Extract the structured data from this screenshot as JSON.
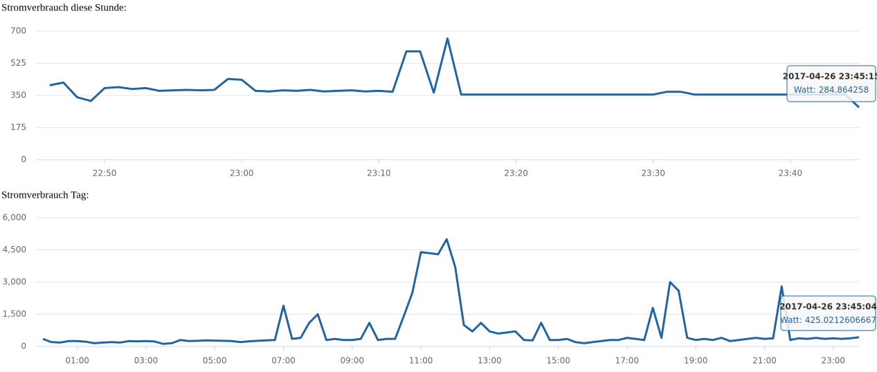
{
  "chart_data": [
    {
      "type": "line",
      "title": "Stromverbrauch diese Stunde:",
      "color": "#1f64a3",
      "grid": true,
      "x": [
        "22:46",
        "22:47",
        "22:48",
        "22:49",
        "22:50",
        "22:51",
        "22:52",
        "22:53",
        "22:54",
        "22:55",
        "22:56",
        "22:57",
        "22:58",
        "22:59",
        "23:00",
        "23:01",
        "23:02",
        "23:03",
        "23:04",
        "23:05",
        "23:06",
        "23:07",
        "23:08",
        "23:09",
        "23:10",
        "23:11",
        "23:12",
        "23:13",
        "23:14",
        "23:15",
        "23:16",
        "23:17",
        "23:18",
        "23:19",
        "23:20",
        "23:21",
        "23:22",
        "23:23",
        "23:24",
        "23:25",
        "23:26",
        "23:27",
        "23:28",
        "23:29",
        "23:30",
        "23:31",
        "23:32",
        "23:33",
        "23:34",
        "23:35",
        "23:36",
        "23:37",
        "23:38",
        "23:39",
        "23:40",
        "23:41",
        "23:42",
        "23:43",
        "23:44",
        "23:45"
      ],
      "values": [
        405,
        420,
        340,
        320,
        390,
        395,
        385,
        390,
        375,
        378,
        380,
        378,
        380,
        440,
        435,
        375,
        372,
        378,
        375,
        380,
        372,
        375,
        378,
        372,
        375,
        370,
        590,
        590,
        365,
        660,
        355,
        355,
        355,
        355,
        355,
        355,
        355,
        355,
        355,
        355,
        355,
        355,
        355,
        355,
        355,
        370,
        370,
        355,
        355,
        355,
        355,
        355,
        355,
        355,
        355,
        355,
        355,
        355,
        355,
        285
      ],
      "xlim": [
        "22:45",
        "23:45"
      ],
      "xticks": [
        "22:50",
        "23:00",
        "23:10",
        "23:20",
        "23:30",
        "23:40"
      ],
      "ylim": [
        0,
        700
      ],
      "yticks": [
        0,
        175,
        350,
        525,
        700
      ],
      "tooltip": {
        "time": "2017-04-26 23:45:15",
        "label": "Watt:",
        "value": 284.864258
      }
    },
    {
      "type": "line",
      "title": "Stromverbrauch Tag:",
      "color": "#1f64a3",
      "grid": true,
      "x": [
        "00:00",
        "00:15",
        "00:30",
        "00:45",
        "01:00",
        "01:15",
        "01:30",
        "01:45",
        "02:00",
        "02:15",
        "02:30",
        "02:45",
        "03:00",
        "03:15",
        "03:30",
        "03:45",
        "04:00",
        "04:15",
        "04:30",
        "04:45",
        "05:00",
        "05:15",
        "05:30",
        "05:45",
        "06:00",
        "06:15",
        "06:30",
        "06:45",
        "07:00",
        "07:15",
        "07:30",
        "07:45",
        "08:00",
        "08:15",
        "08:30",
        "08:45",
        "09:00",
        "09:15",
        "09:30",
        "09:45",
        "10:00",
        "10:15",
        "10:30",
        "10:45",
        "11:00",
        "11:15",
        "11:30",
        "11:45",
        "12:00",
        "12:15",
        "12:30",
        "12:45",
        "13:00",
        "13:15",
        "13:30",
        "13:45",
        "14:00",
        "14:15",
        "14:30",
        "14:45",
        "15:00",
        "15:15",
        "15:30",
        "15:45",
        "16:00",
        "16:15",
        "16:30",
        "16:45",
        "17:00",
        "17:15",
        "17:30",
        "17:45",
        "18:00",
        "18:15",
        "18:30",
        "18:45",
        "19:00",
        "19:15",
        "19:30",
        "19:45",
        "20:00",
        "20:15",
        "20:30",
        "20:45",
        "21:00",
        "21:15",
        "21:30",
        "21:45",
        "22:00",
        "22:15",
        "22:30",
        "22:45",
        "23:00",
        "23:15",
        "23:30",
        "23:45"
      ],
      "values": [
        350,
        200,
        180,
        250,
        250,
        220,
        150,
        180,
        200,
        180,
        250,
        240,
        250,
        230,
        120,
        150,
        300,
        250,
        260,
        280,
        270,
        260,
        250,
        200,
        240,
        260,
        280,
        300,
        1900,
        350,
        400,
        1100,
        1500,
        300,
        350,
        300,
        300,
        350,
        1100,
        300,
        350,
        350,
        1400,
        2500,
        4400,
        4350,
        4300,
        5000,
        3700,
        1000,
        700,
        1100,
        700,
        600,
        650,
        700,
        300,
        280,
        1100,
        300,
        300,
        350,
        200,
        150,
        200,
        250,
        300,
        300,
        400,
        350,
        300,
        1800,
        400,
        3000,
        2600,
        400,
        300,
        350,
        300,
        400,
        250,
        300,
        350,
        400,
        350,
        380,
        2800,
        300,
        380,
        350,
        400,
        350,
        380,
        350,
        380,
        425
      ],
      "xlim": [
        "00:00",
        "23:45"
      ],
      "xticks": [
        "01:00",
        "03:00",
        "05:00",
        "07:00",
        "09:00",
        "11:00",
        "13:00",
        "15:00",
        "17:00",
        "19:00",
        "21:00",
        "23:00"
      ],
      "ylim": [
        0,
        6000
      ],
      "yticks": [
        0,
        {
          "value": 1500,
          "label": "1,500"
        },
        {
          "value": 3000,
          "label": "3,000"
        },
        {
          "value": 4500,
          "label": "4,500"
        },
        {
          "value": 6000,
          "label": "6,000"
        }
      ],
      "tooltip": {
        "time": "2017-04-26 23:45:04",
        "label": "Watt:",
        "value": 425.0212606667
      }
    }
  ]
}
